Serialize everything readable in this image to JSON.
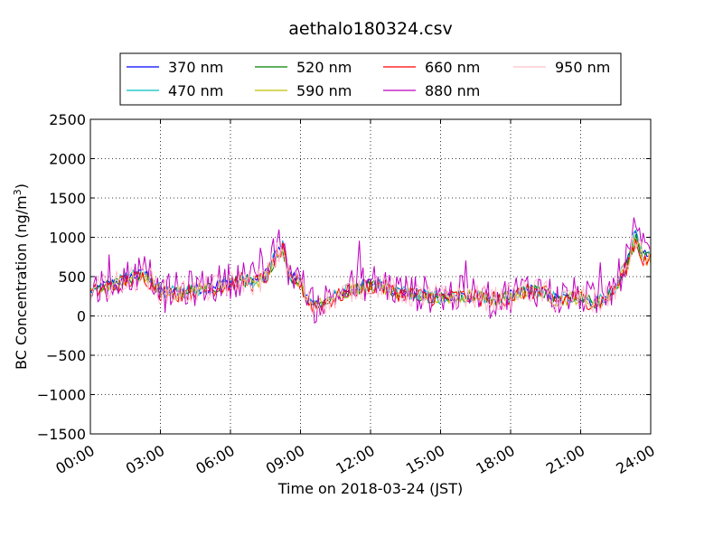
{
  "chart_data": {
    "type": "line",
    "title": "aethalo180324.csv",
    "xlabel": "Time on 2018-03-24 (JST)",
    "ylabel": "BC Concentration (ng/m",
    "ylabel_sup": "3",
    "ylabel_close": ")",
    "xlim": [
      "00:00",
      "24:00"
    ],
    "ylim": [
      -1500,
      2500
    ],
    "xticks": [
      "00:00",
      "03:00",
      "06:00",
      "09:00",
      "12:00",
      "15:00",
      "18:00",
      "21:00",
      "24:00"
    ],
    "yticks": [
      2500,
      2000,
      1500,
      1000,
      500,
      0,
      -500,
      -1000,
      -1500
    ],
    "grid": true,
    "legend_position": "top-center",
    "series": [
      {
        "name": "370 nm",
        "color": "#0000ff"
      },
      {
        "name": "470 nm",
        "color": "#00bfbf"
      },
      {
        "name": "520 nm",
        "color": "#008000"
      },
      {
        "name": "590 nm",
        "color": "#bfbf00"
      },
      {
        "name": "660 nm",
        "color": "#ff0000"
      },
      {
        "name": "880 nm",
        "color": "#bf00bf"
      },
      {
        "name": "950 nm",
        "color": "#ffc0cb"
      }
    ],
    "base_profile": [
      [
        "00:00",
        300
      ],
      [
        "00:30",
        380
      ],
      [
        "01:00",
        420
      ],
      [
        "01:30",
        470
      ],
      [
        "02:00",
        520
      ],
      [
        "02:20",
        540
      ],
      [
        "02:40",
        450
      ],
      [
        "03:00",
        330
      ],
      [
        "03:30",
        300
      ],
      [
        "04:00",
        320
      ],
      [
        "04:30",
        340
      ],
      [
        "05:00",
        360
      ],
      [
        "05:30",
        400
      ],
      [
        "06:00",
        430
      ],
      [
        "06:30",
        480
      ],
      [
        "07:00",
        450
      ],
      [
        "07:30",
        520
      ],
      [
        "08:00",
        820
      ],
      [
        "08:15",
        900
      ],
      [
        "08:30",
        520
      ],
      [
        "09:00",
        470
      ],
      [
        "09:10",
        300
      ],
      [
        "09:30",
        120
      ],
      [
        "10:00",
        180
      ],
      [
        "10:30",
        250
      ],
      [
        "11:00",
        330
      ],
      [
        "11:30",
        380
      ],
      [
        "12:00",
        420
      ],
      [
        "12:30",
        400
      ],
      [
        "13:00",
        330
      ],
      [
        "13:30",
        300
      ],
      [
        "14:00",
        280
      ],
      [
        "14:30",
        260
      ],
      [
        "15:00",
        250
      ],
      [
        "15:30",
        260
      ],
      [
        "16:00",
        270
      ],
      [
        "16:30",
        250
      ],
      [
        "17:00",
        240
      ],
      [
        "17:30",
        220
      ],
      [
        "18:00",
        260
      ],
      [
        "18:30",
        320
      ],
      [
        "19:00",
        340
      ],
      [
        "19:30",
        300
      ],
      [
        "20:00",
        210
      ],
      [
        "20:30",
        240
      ],
      [
        "21:00",
        260
      ],
      [
        "21:30",
        180
      ],
      [
        "22:00",
        210
      ],
      [
        "22:30",
        380
      ],
      [
        "23:00",
        700
      ],
      [
        "23:20",
        1050
      ],
      [
        "23:40",
        780
      ],
      [
        "24:00",
        760
      ]
    ]
  }
}
